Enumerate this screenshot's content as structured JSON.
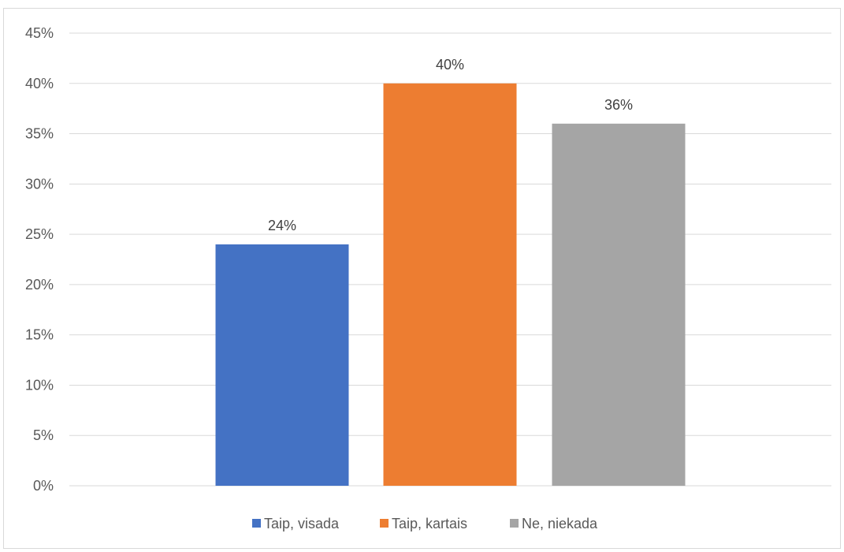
{
  "chart_data": {
    "type": "bar",
    "title": "",
    "xlabel": "",
    "ylabel": "",
    "categories": [
      "Taip, visada",
      "Taip, kartais",
      "Ne, niekada"
    ],
    "values": [
      24,
      40,
      36
    ],
    "data_labels": [
      "24%",
      "40%",
      "36%"
    ],
    "ylim": [
      0,
      45
    ],
    "y_ticks": [
      0,
      5,
      10,
      15,
      20,
      25,
      30,
      35,
      40,
      45
    ],
    "y_tick_labels": [
      "0%",
      "5%",
      "10%",
      "15%",
      "20%",
      "25%",
      "30%",
      "35%",
      "40%",
      "45%"
    ],
    "grid": true,
    "legend": {
      "placement": "bottom",
      "entries": [
        "Taip, visada",
        "Taip, kartais",
        "Ne, niekada"
      ]
    },
    "colors": [
      "#4472c4",
      "#ed7d31",
      "#a5a5a5"
    ]
  }
}
